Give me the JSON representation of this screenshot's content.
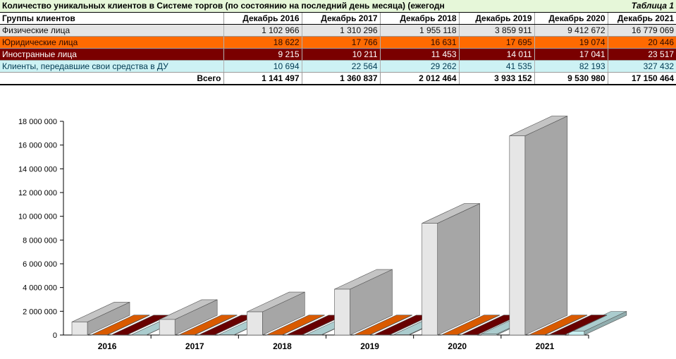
{
  "table": {
    "title": "Количество уникальных клиентов в Системе торгов (по состоянию на последний день месяца) (ежегодн",
    "table_label": "Таблица 1",
    "group_header": "Группы клиентов",
    "columns": [
      "Декабрь 2016",
      "Декабрь 2017",
      "Декабрь 2018",
      "Декабрь 2019",
      "Декабрь 2020",
      "Декабрь 2021"
    ],
    "rows": [
      {
        "label": "Физические лица",
        "values": [
          "1 102 966",
          "1 310 296",
          "1 955 118",
          "3 859 911",
          "9 412 672",
          "16 779 069"
        ]
      },
      {
        "label": "Юридические лица",
        "values": [
          "18 622",
          "17 766",
          "16 631",
          "17 695",
          "19 074",
          "20 446"
        ]
      },
      {
        "label": "Иностранные лица",
        "values": [
          "9 215",
          "10 211",
          "11 453",
          "14 011",
          "17 041",
          "23 517"
        ]
      },
      {
        "label": "Клиенты, передавшие свои средства в ДУ",
        "values": [
          "10 694",
          "22 564",
          "29 262",
          "41 535",
          "82 193",
          "327 432"
        ]
      }
    ],
    "total_label": "Всего",
    "totals": [
      "1 141 497",
      "1 360 837",
      "2 012 464",
      "3 933 152",
      "9 530 980",
      "17 150 464"
    ]
  },
  "chart_data": {
    "type": "bar",
    "categories": [
      "2016",
      "2017",
      "2018",
      "2019",
      "2020",
      "2021"
    ],
    "series": [
      {
        "values": [
          1102966,
          1310296,
          1955118,
          3859911,
          9412672,
          16779069
        ],
        "color": "#e6e6e6"
      },
      {
        "values": [
          18622,
          17766,
          16631,
          17695,
          19074,
          20446
        ],
        "color": "#ff6a00"
      },
      {
        "values": [
          9215,
          10211,
          11453,
          14011,
          17041,
          23517
        ],
        "color": "#7a0000"
      },
      {
        "values": [
          10694,
          22564,
          29262,
          41535,
          82193,
          327432
        ],
        "color": "#c9f0f2"
      }
    ],
    "y_ticks": [
      "0",
      "2 000 000",
      "4 000 000",
      "6 000 000",
      "8 000 000",
      "10 000 000",
      "12 000 000",
      "14 000 000",
      "16 000 000",
      "18 000 000"
    ],
    "ylim": [
      0,
      18000000
    ],
    "style": "3d-clustered",
    "legend": "none",
    "grid": false
  }
}
